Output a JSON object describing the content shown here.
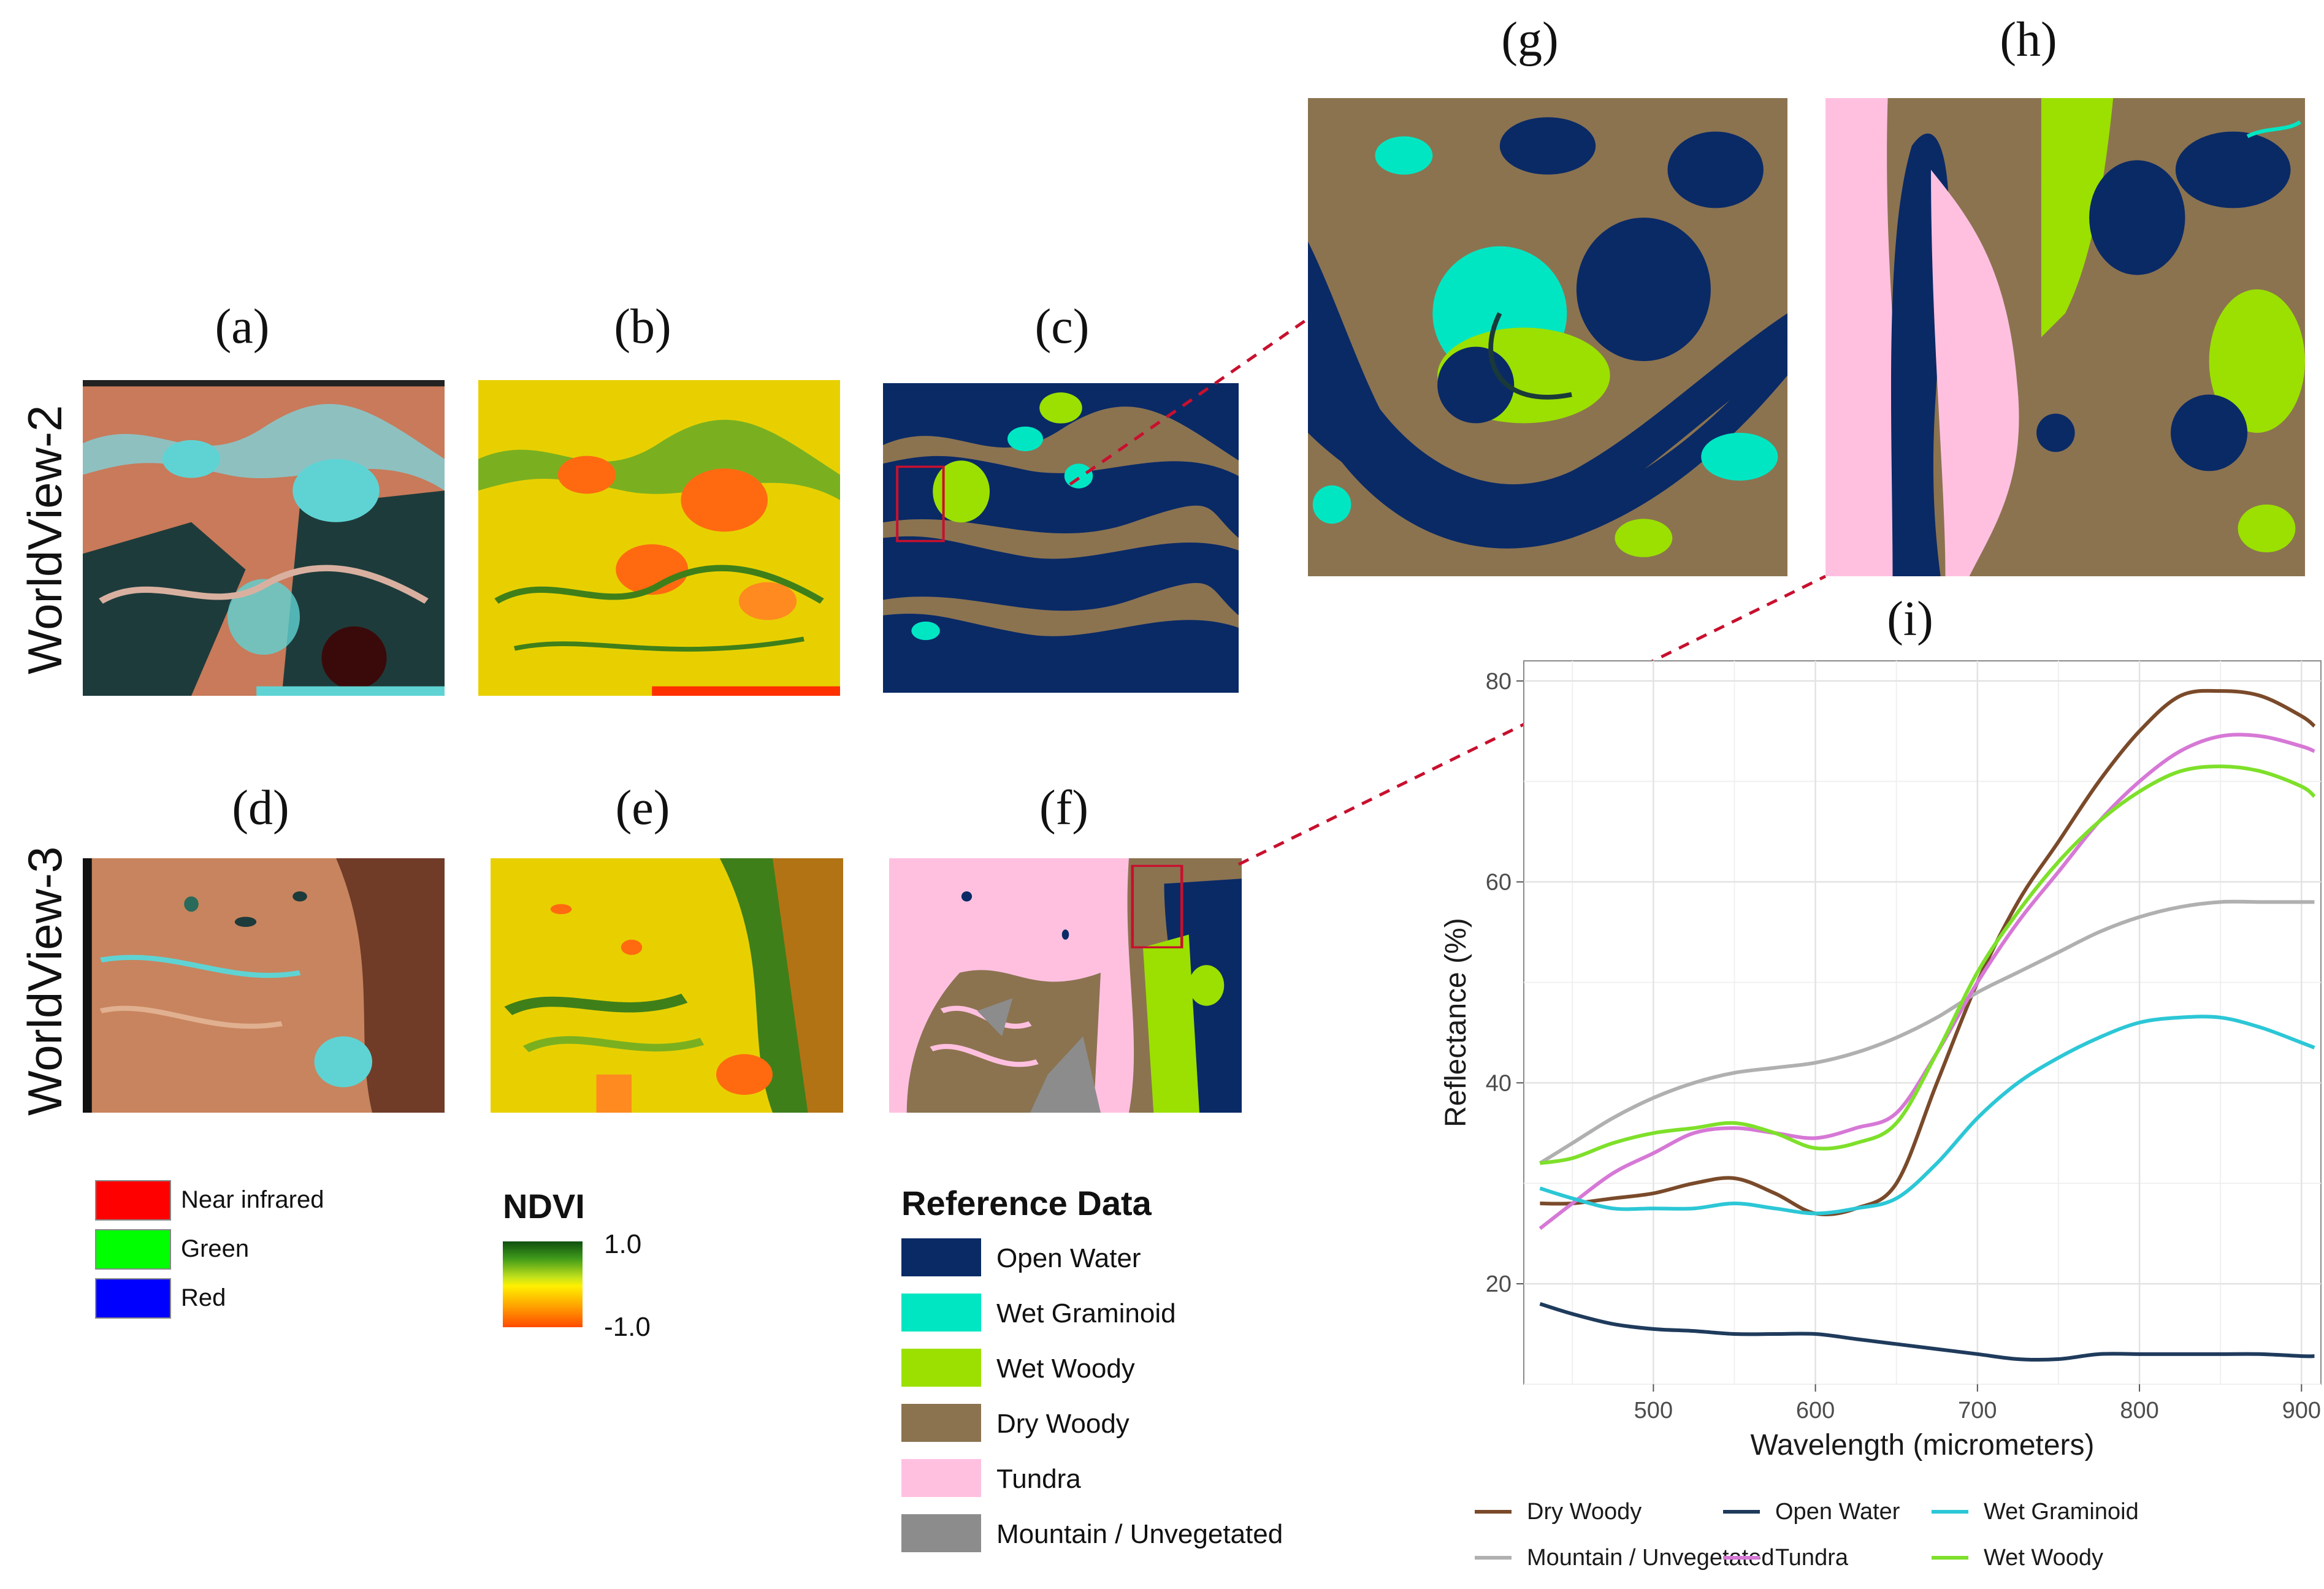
{
  "panel_labels": {
    "a": "(a)",
    "b": "(b)",
    "c": "(c)",
    "d": "(d)",
    "e": "(e)",
    "f": "(f)",
    "g": "(g)",
    "h": "(h)",
    "i": "(i)"
  },
  "row_labels": {
    "top": "WorldView-2",
    "bottom": "WorldView-3"
  },
  "band_legend": [
    {
      "label": "Near infrared",
      "color": "#ff0000"
    },
    {
      "label": "Green",
      "color": "#00ff00"
    },
    {
      "label": "Red",
      "color": "#0000ff"
    }
  ],
  "ndvi_legend": {
    "title": "NDVI",
    "max": "1.0",
    "min": "-1.0"
  },
  "reference_legend": {
    "title": "Reference Data",
    "items": [
      {
        "label": "Open Water",
        "color": "#0a2a66"
      },
      {
        "label": "Wet Graminoid",
        "color": "#00e6c3"
      },
      {
        "label": "Wet Woody",
        "color": "#9be000"
      },
      {
        "label": "Dry Woody",
        "color": "#8b7350"
      },
      {
        "label": "Tundra",
        "color": "#ffc0e0"
      },
      {
        "label": "Mountain / Unvegetated",
        "color": "#8c8c8c"
      }
    ]
  },
  "chart_data": {
    "type": "line",
    "title": "",
    "xlabel": "Wavelength (micrometers)",
    "ylabel": "Reflectance (%)",
    "xlim": [
      420,
      912
    ],
    "ylim": [
      10,
      82
    ],
    "xticks": [
      500,
      600,
      700,
      800,
      900
    ],
    "yticks": [
      20,
      40,
      60,
      80
    ],
    "grid": true,
    "legend_position": "bottom",
    "x": [
      430,
      450,
      475,
      500,
      525,
      550,
      575,
      600,
      625,
      650,
      675,
      700,
      725,
      750,
      775,
      800,
      825,
      850,
      875,
      900,
      908
    ],
    "series": [
      {
        "name": "Dry Woody",
        "color": "#7a4a2a",
        "values": [
          28.0,
          28.0,
          28.5,
          29.0,
          30.0,
          30.5,
          29.0,
          27.0,
          27.5,
          30.0,
          40.0,
          50.0,
          58.0,
          64.0,
          70.0,
          75.0,
          78.5,
          79.0,
          78.5,
          76.5,
          75.5
        ]
      },
      {
        "name": "Mountain / Unvegetated",
        "color": "#b0b0b0",
        "values": [
          32.0,
          34.0,
          36.5,
          38.5,
          40.0,
          41.0,
          41.5,
          42.0,
          43.0,
          44.5,
          46.5,
          49.0,
          51.0,
          53.0,
          55.0,
          56.5,
          57.5,
          58.0,
          58.0,
          58.0,
          58.0
        ]
      },
      {
        "name": "Open Water",
        "color": "#1f3b5c",
        "values": [
          18.0,
          17.0,
          16.0,
          15.5,
          15.3,
          15.0,
          15.0,
          15.0,
          14.5,
          14.0,
          13.5,
          13.0,
          12.5,
          12.5,
          13.0,
          13.0,
          13.0,
          13.0,
          13.0,
          12.8,
          12.8
        ]
      },
      {
        "name": "Tundra",
        "color": "#d678d6",
        "values": [
          25.5,
          28.0,
          31.0,
          33.0,
          35.0,
          35.5,
          35.0,
          34.5,
          35.5,
          37.0,
          43.0,
          50.0,
          56.0,
          61.0,
          66.0,
          70.0,
          73.0,
          74.5,
          74.5,
          73.5,
          73.0
        ]
      },
      {
        "name": "Wet Graminoid",
        "color": "#2cc7d6",
        "values": [
          29.5,
          28.5,
          27.5,
          27.5,
          27.5,
          28.0,
          27.5,
          27.0,
          27.5,
          28.5,
          32.0,
          36.5,
          40.0,
          42.5,
          44.5,
          46.0,
          46.5,
          46.5,
          45.5,
          44.0,
          43.5
        ]
      },
      {
        "name": "Wet Woody",
        "color": "#7ee02a",
        "values": [
          32.0,
          32.5,
          34.0,
          35.0,
          35.5,
          36.0,
          35.0,
          33.5,
          34.0,
          36.0,
          43.0,
          51.0,
          57.0,
          62.0,
          66.0,
          69.0,
          71.0,
          71.5,
          71.0,
          69.5,
          68.5
        ]
      }
    ]
  },
  "map_colors": {
    "water": "#0a2a66",
    "graminoid": "#00e6c3",
    "wetwoody": "#9be000",
    "drywoody": "#8b7350",
    "tundra": "#ffc0e0",
    "mountain": "#8c8c8c",
    "fc_soil": "#c87a5a",
    "fc_water": "#1e3b3b",
    "fc_cyan": "#5fd3d3",
    "ndvi_yellow": "#e8d000",
    "ndvi_orange": "#ff6a10",
    "ndvi_green": "#3f7f1a"
  }
}
